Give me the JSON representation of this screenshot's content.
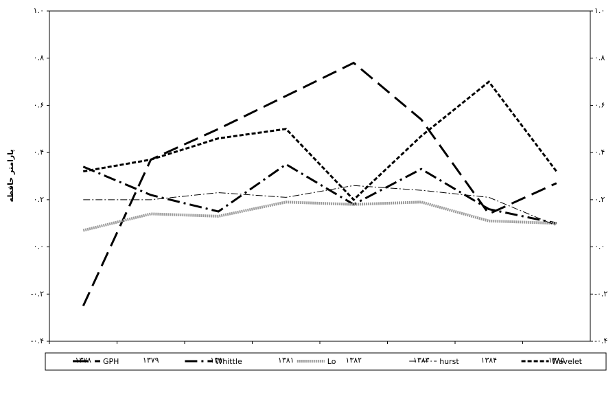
{
  "chart_data": {
    "type": "line",
    "y_label": "پارامتر حافظه",
    "categories": [
      "۱۳۷۸",
      "۱۳۷۹",
      "۱۳۸۰",
      "۱۳۸۱",
      "۱۳۸۲",
      "۱۳۸۳",
      "۱۳۸۴",
      "۱۳۸۵"
    ],
    "ylim": [
      -0.4,
      1.0
    ],
    "yticks": [
      {
        "value": -0.4,
        "label": "-۰.۴"
      },
      {
        "value": -0.2,
        "label": "-۰.۲"
      },
      {
        "value": 0,
        "label": "۰.۰"
      },
      {
        "value": 0.2,
        "label": "۰.۲"
      },
      {
        "value": 0.4,
        "label": "۰.۴"
      },
      {
        "value": 0.6,
        "label": "۰.۶"
      },
      {
        "value": 0.8,
        "label": "۰.۸"
      },
      {
        "value": 1.0,
        "label": "۱.۰"
      }
    ],
    "y2lim": [
      -0.4,
      1.0
    ],
    "y2ticks": [
      {
        "value": -0.4,
        "label": "-۰.۴"
      },
      {
        "value": -0.2,
        "label": "-۰.۲"
      },
      {
        "value": 0,
        "label": "۰.۰"
      },
      {
        "value": 0.2,
        "label": "۰.۲"
      },
      {
        "value": 0.4,
        "label": "۰.۴"
      },
      {
        "value": 0.6,
        "label": "۰.۶"
      },
      {
        "value": 0.8,
        "label": "۰.۸"
      },
      {
        "value": 1.0,
        "label": "۱.۰"
      }
    ],
    "legend": "bottom",
    "series": [
      {
        "name": "GPH",
        "color": "#000000",
        "dash": "22 10",
        "width": 3,
        "values": [
          -0.25,
          0.37,
          0.5,
          0.64,
          0.78,
          0.54,
          0.14,
          0.27
        ]
      },
      {
        "name": "Whittle",
        "color": "#000000",
        "dash": "18 6 3 6",
        "width": 3,
        "values": [
          0.34,
          0.22,
          0.15,
          0.35,
          0.18,
          0.33,
          0.16,
          0.1
        ]
      },
      {
        "name": "Lo",
        "color": "#9a9a9a",
        "dash": "2 1",
        "width": 4,
        "values": [
          0.07,
          0.14,
          0.13,
          0.19,
          0.18,
          0.19,
          0.11,
          0.1
        ]
      },
      {
        "name": "hurst",
        "color": "#000000",
        "dash": "10 3 2 3",
        "width": 1,
        "values": [
          0.2,
          0.2,
          0.23,
          0.21,
          0.26,
          0.24,
          0.21,
          0.09
        ]
      },
      {
        "name": "Wavelet",
        "color": "#000000",
        "dash": "6 3",
        "width": 3,
        "values": [
          0.32,
          0.37,
          0.46,
          0.5,
          0.2,
          0.47,
          0.7,
          0.32
        ]
      }
    ]
  }
}
